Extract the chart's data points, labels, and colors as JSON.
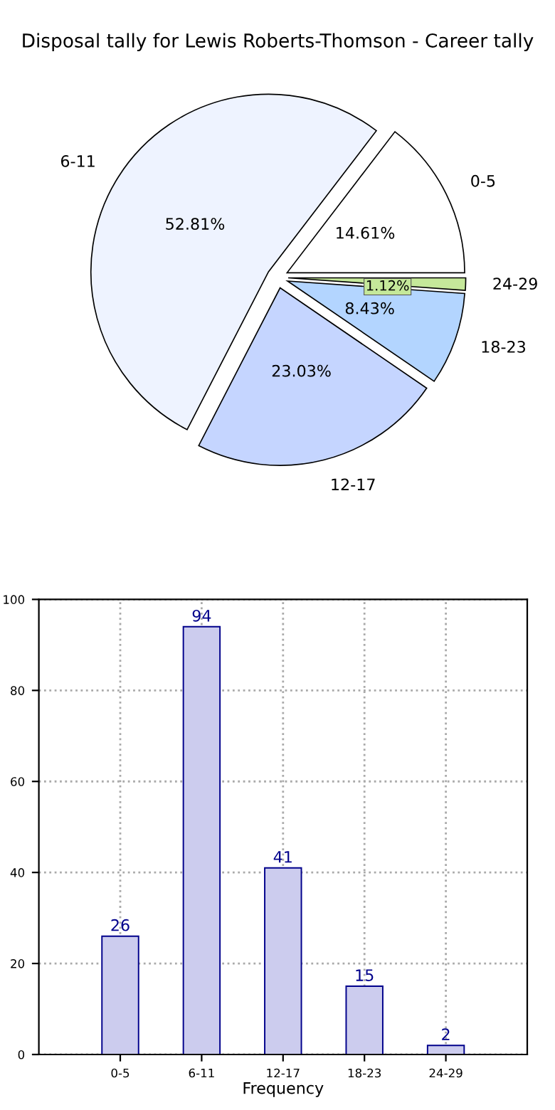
{
  "chart_data": [
    {
      "type": "pie",
      "title": "Disposal tally for Lewis Roberts-Thomson - Career tally",
      "categories": [
        "0-5",
        "6-11",
        "12-17",
        "18-23",
        "24-29"
      ],
      "values": [
        14.61,
        52.81,
        23.03,
        8.43,
        1.12
      ],
      "colors": [
        "#ffffff",
        "#eef3ff",
        "#c5d5ff",
        "#b3d5ff",
        "#c5e89a"
      ],
      "value_labels": [
        "14.61%",
        "52.81%",
        "23.03%",
        "8.43%",
        "1.12%"
      ]
    },
    {
      "type": "bar",
      "categories": [
        "0-5",
        "6-11",
        "12-17",
        "18-23",
        "24-29"
      ],
      "values": [
        26,
        94,
        41,
        15,
        2
      ],
      "color": "#ccccee",
      "xlabel": "Frequency",
      "ylim": [
        0,
        100
      ],
      "yticks": [
        0,
        20,
        40,
        60,
        80,
        100
      ],
      "grid": true,
      "data_labels": true
    }
  ]
}
